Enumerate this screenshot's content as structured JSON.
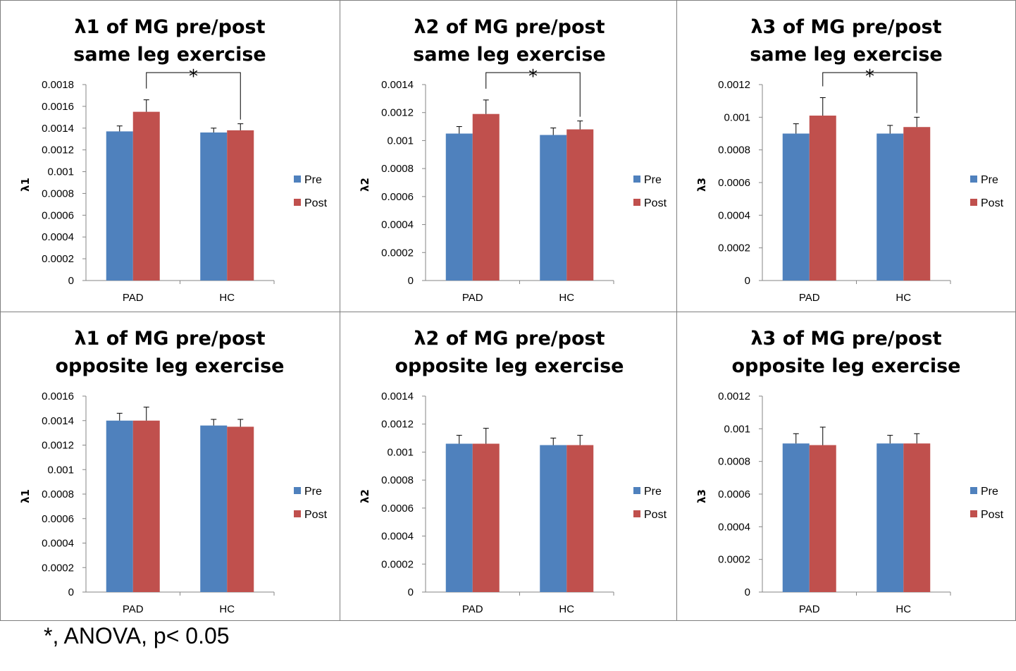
{
  "footnote": "*, ANOVA, p< 0.05",
  "colors": {
    "pre": "#4f81bd",
    "post": "#c0504d",
    "axis": "#868686",
    "frame": "#7f7f7f"
  },
  "chart_data": [
    {
      "type": "bar",
      "title_lines": [
        "λ1 of MG pre/post",
        "same leg exercise"
      ],
      "ylabel": "λ1",
      "categories": [
        "PAD",
        "HC"
      ],
      "ylim": [
        0,
        0.0018
      ],
      "yticks": [
        "0",
        "0.0002",
        "0.0004",
        "0.0006",
        "0.0008",
        "0.001",
        "0.0012",
        "0.0014",
        "0.0016",
        "0.0018"
      ],
      "series": [
        {
          "name": "Pre",
          "values": [
            0.00137,
            0.00136
          ],
          "errors": [
            5e-05,
            4e-05
          ]
        },
        {
          "name": "Post",
          "values": [
            0.00155,
            0.00138
          ],
          "errors": [
            0.00011,
            6e-05
          ]
        }
      ],
      "significance": {
        "label": "*",
        "from": "PAD Post",
        "to": "HC Post"
      },
      "legend_position": "right"
    },
    {
      "type": "bar",
      "title_lines": [
        "λ2 of MG pre/post",
        "same leg exercise"
      ],
      "ylabel": "λ2",
      "categories": [
        "PAD",
        "HC"
      ],
      "ylim": [
        0,
        0.0014
      ],
      "yticks": [
        "0",
        "0.0002",
        "0.0004",
        "0.0006",
        "0.0008",
        "0.001",
        "0.0012",
        "0.0014"
      ],
      "series": [
        {
          "name": "Pre",
          "values": [
            0.00105,
            0.00104
          ],
          "errors": [
            5e-05,
            5e-05
          ]
        },
        {
          "name": "Post",
          "values": [
            0.00119,
            0.00108
          ],
          "errors": [
            0.0001,
            6e-05
          ]
        }
      ],
      "significance": {
        "label": "*",
        "from": "PAD Post",
        "to": "HC Post"
      },
      "legend_position": "right"
    },
    {
      "type": "bar",
      "title_lines": [
        "λ3 of MG pre/post",
        "same leg exercise"
      ],
      "ylabel": "λ3",
      "categories": [
        "PAD",
        "HC"
      ],
      "ylim": [
        0,
        0.0012
      ],
      "yticks": [
        "0",
        "0.0002",
        "0.0004",
        "0.0006",
        "0.0008",
        "0.001",
        "0.0012"
      ],
      "series": [
        {
          "name": "Pre",
          "values": [
            0.0009,
            0.0009
          ],
          "errors": [
            6e-05,
            5e-05
          ]
        },
        {
          "name": "Post",
          "values": [
            0.00101,
            0.00094
          ],
          "errors": [
            0.00011,
            6e-05
          ]
        }
      ],
      "significance": {
        "label": "*",
        "from": "PAD Post",
        "to": "HC Post"
      },
      "legend_position": "right"
    },
    {
      "type": "bar",
      "title_lines": [
        "λ1 of MG pre/post",
        "opposite leg exercise"
      ],
      "ylabel": "λ1",
      "categories": [
        "PAD",
        "HC"
      ],
      "ylim": [
        0,
        0.0016
      ],
      "yticks": [
        "0",
        "0.0002",
        "0.0004",
        "0.0006",
        "0.0008",
        "0.001",
        "0.0012",
        "0.0014",
        "0.0016"
      ],
      "series": [
        {
          "name": "Pre",
          "values": [
            0.0014,
            0.00136
          ],
          "errors": [
            6e-05,
            5e-05
          ]
        },
        {
          "name": "Post",
          "values": [
            0.0014,
            0.00135
          ],
          "errors": [
            0.00011,
            6e-05
          ]
        }
      ],
      "legend_position": "right"
    },
    {
      "type": "bar",
      "title_lines": [
        "λ2 of MG pre/post",
        "opposite leg exercise"
      ],
      "ylabel": "λ2",
      "categories": [
        "PAD",
        "HC"
      ],
      "ylim": [
        0,
        0.0014
      ],
      "yticks": [
        "0",
        "0.0002",
        "0.0004",
        "0.0006",
        "0.0008",
        "0.001",
        "0.0012",
        "0.0014"
      ],
      "series": [
        {
          "name": "Pre",
          "values": [
            0.00106,
            0.00105
          ],
          "errors": [
            6e-05,
            5e-05
          ]
        },
        {
          "name": "Post",
          "values": [
            0.00106,
            0.00105
          ],
          "errors": [
            0.00011,
            7e-05
          ]
        }
      ],
      "legend_position": "right"
    },
    {
      "type": "bar",
      "title_lines": [
        "λ3 of MG pre/post",
        "opposite leg exercise"
      ],
      "ylabel": "λ3",
      "categories": [
        "PAD",
        "HC"
      ],
      "ylim": [
        0,
        0.0012
      ],
      "yticks": [
        "0",
        "0.0002",
        "0.0004",
        "0.0006",
        "0.0008",
        "0.001",
        "0.0012"
      ],
      "series": [
        {
          "name": "Pre",
          "values": [
            0.00091,
            0.00091
          ],
          "errors": [
            6e-05,
            5e-05
          ]
        },
        {
          "name": "Post",
          "values": [
            0.0009,
            0.00091
          ],
          "errors": [
            0.00011,
            6e-05
          ]
        }
      ],
      "legend_position": "right"
    }
  ]
}
